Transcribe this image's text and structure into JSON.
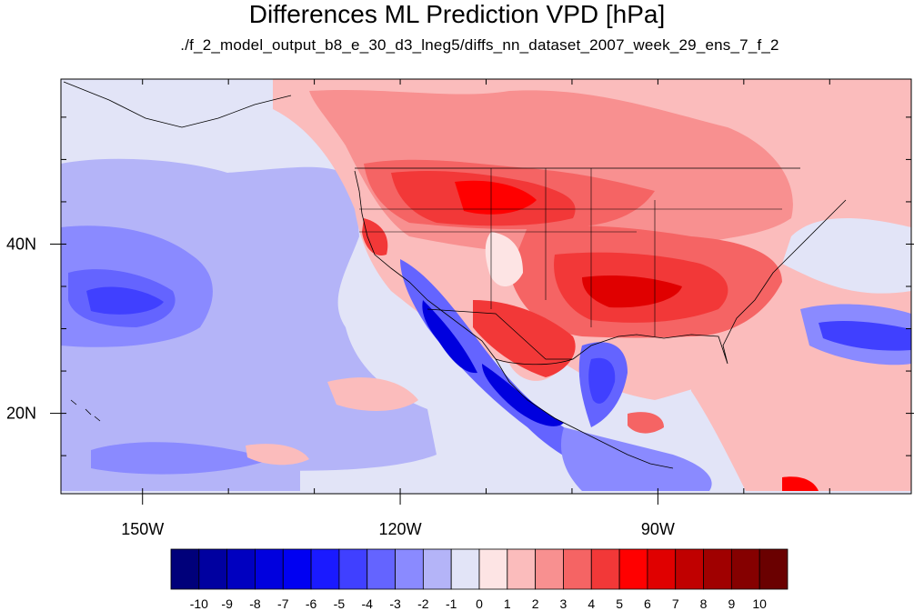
{
  "title": "Differences ML Prediction VPD [hPa]",
  "subtitle": "./f_2_model_output_b8_e_30_d3_lneg5/diffs_nn_dataset_2007_week_29_ens_7_f_2",
  "map": {
    "lat_ticks": [
      {
        "label": "40N",
        "lat": 40
      },
      {
        "label": "20N",
        "lat": 20
      }
    ],
    "lon_ticks": [
      {
        "label": "150W",
        "lon": -150
      },
      {
        "label": "120W",
        "lon": -120
      },
      {
        "label": "90W",
        "lon": -90
      }
    ],
    "lon_range": [
      -159.5,
      -60.5
    ],
    "lat_range": [
      10.5,
      59.5
    ]
  },
  "colorbar": {
    "labels": [
      "-10",
      "-9",
      "-8",
      "-7",
      "-6",
      "-5",
      "-4",
      "-3",
      "-2",
      "-1",
      "0",
      "1",
      "2",
      "3",
      "4",
      "5",
      "6",
      "7",
      "8",
      "9",
      "10"
    ],
    "colors": [
      "#00007a",
      "#0000a0",
      "#0000c0",
      "#0000de",
      "#0000f2",
      "#1a1aff",
      "#4040ff",
      "#6464ff",
      "#8a8aff",
      "#b4b4f8",
      "#e2e4f7",
      "#fde4e4",
      "#fbbcbc",
      "#f89090",
      "#f56464",
      "#f23838",
      "#ff0000",
      "#e00000",
      "#c00000",
      "#a00000",
      "#850000",
      "#6a0000"
    ]
  },
  "colors": {
    "neutral": "#e2e4f7",
    "ocean_blue": "#b4b4f8",
    "strong_red": "#f23838",
    "strong_blue": "#1a1aff"
  }
}
